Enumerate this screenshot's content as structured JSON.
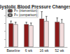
{
  "chart_data": {
    "type": "bar",
    "title": "Systolic Blood Pressure Changes",
    "categories": [
      "Baseline",
      "6 wk",
      "16 wk",
      "52 wk"
    ],
    "series": [
      {
        "name": "P+ (intervention)",
        "color": "#8b1a1a",
        "values": [
          60,
          58,
          72,
          64
        ],
        "errors": [
          6,
          5,
          18,
          10
        ]
      },
      {
        "name": "P+ (comparison)",
        "color": "#f2dcdc",
        "values": [
          58,
          55,
          66,
          61
        ],
        "errors": [
          5,
          6,
          12,
          9
        ]
      }
    ],
    "ylim": [
      0,
      100
    ],
    "yticks": [
      0,
      20,
      40,
      60,
      80,
      100
    ],
    "grid": false,
    "legend": "top-left",
    "tick_labels": "x"
  }
}
